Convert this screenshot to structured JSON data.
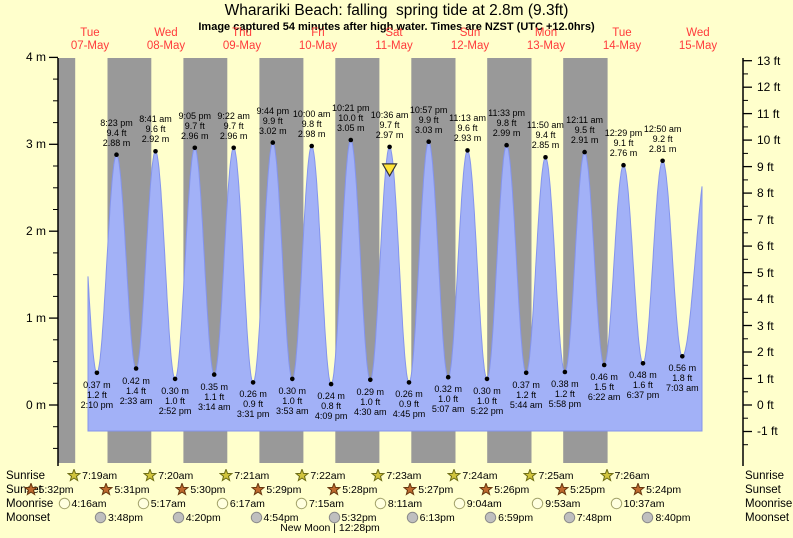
{
  "title": "Wharariki Beach: falling  spring tide at 2.8m (9.3ft)",
  "subtitle": "Image captured 54 minutes after high water. Times are NZST (UTC +12.0hrs)",
  "days": [
    {
      "name": "Tue",
      "date": "07-May"
    },
    {
      "name": "Wed",
      "date": "08-May"
    },
    {
      "name": "Thu",
      "date": "09-May"
    },
    {
      "name": "Fri",
      "date": "10-May"
    },
    {
      "name": "Sat",
      "date": "11-May"
    },
    {
      "name": "Sun",
      "date": "12-May"
    },
    {
      "name": "Mon",
      "date": "13-May"
    },
    {
      "name": "Tue",
      "date": "14-May"
    },
    {
      "name": "Wed",
      "date": "15-May"
    }
  ],
  "axes": {
    "left_labels": [
      "4 m",
      "3 m",
      "2 m",
      "1 m",
      "0 m"
    ],
    "right_labels": [
      "13 ft",
      "12 ft",
      "11 ft",
      "10 ft",
      "9 ft",
      "8 ft",
      "7 ft",
      "6 ft",
      "5 ft",
      "4 ft",
      "3 ft",
      "2 ft",
      "1 ft",
      "0 ft",
      "-1 ft"
    ]
  },
  "chart_data": {
    "type": "area",
    "title": "Wharariki Beach: falling  spring tide at 2.8m (9.3ft)",
    "ylabel_left": "m",
    "ylabel_right": "ft",
    "ylim_m": [
      -0.67,
      4.0
    ],
    "x_categories": [
      "07-May",
      "08-May",
      "09-May",
      "10-May",
      "11-May",
      "12-May",
      "13-May",
      "14-May",
      "15-May"
    ],
    "tide_events": [
      {
        "day": 0,
        "time": "2:10 pm",
        "m": "0.37",
        "ft": "1.2",
        "type": "low"
      },
      {
        "day": 0,
        "time": "8:23 pm",
        "m": "2.88",
        "ft": "9.4",
        "type": "high"
      },
      {
        "day": 1,
        "time": "2:33 am",
        "m": "0.42",
        "ft": "1.4",
        "type": "low"
      },
      {
        "day": 1,
        "time": "8:41 am",
        "m": "2.92",
        "ft": "9.6",
        "type": "high"
      },
      {
        "day": 1,
        "time": "2:52 pm",
        "m": "0.30",
        "ft": "1.0",
        "type": "low"
      },
      {
        "day": 1,
        "time": "9:05 pm",
        "m": "2.96",
        "ft": "9.7",
        "type": "high"
      },
      {
        "day": 2,
        "time": "3:14 am",
        "m": "0.35",
        "ft": "1.1",
        "type": "low"
      },
      {
        "day": 2,
        "time": "9:22 am",
        "m": "2.96",
        "ft": "9.7",
        "type": "high"
      },
      {
        "day": 2,
        "time": "3:31 pm",
        "m": "0.26",
        "ft": "0.9",
        "type": "low"
      },
      {
        "day": 2,
        "time": "9:44 pm",
        "m": "3.02",
        "ft": "9.9",
        "type": "high"
      },
      {
        "day": 3,
        "time": "3:53 am",
        "m": "0.30",
        "ft": "1.0",
        "type": "low"
      },
      {
        "day": 3,
        "time": "10:00 am",
        "m": "2.98",
        "ft": "9.8",
        "type": "high"
      },
      {
        "day": 3,
        "time": "4:09 pm",
        "m": "0.24",
        "ft": "0.8",
        "type": "low"
      },
      {
        "day": 3,
        "time": "10:21 pm",
        "m": "3.05",
        "ft": "10.0",
        "type": "high"
      },
      {
        "day": 4,
        "time": "4:30 am",
        "m": "0.29",
        "ft": "1.0",
        "type": "low"
      },
      {
        "day": 4,
        "time": "10:36 am",
        "m": "2.97",
        "ft": "9.7",
        "type": "high",
        "current": true
      },
      {
        "day": 4,
        "time": "4:45 pm",
        "m": "0.26",
        "ft": "0.9",
        "type": "low"
      },
      {
        "day": 4,
        "time": "10:57 pm",
        "m": "3.03",
        "ft": "9.9",
        "type": "high"
      },
      {
        "day": 5,
        "time": "5:07 am",
        "m": "0.32",
        "ft": "1.0",
        "type": "low"
      },
      {
        "day": 5,
        "time": "11:13 am",
        "m": "2.93",
        "ft": "9.6",
        "type": "high"
      },
      {
        "day": 5,
        "time": "5:22 pm",
        "m": "0.30",
        "ft": "1.0",
        "type": "low"
      },
      {
        "day": 5,
        "time": "11:33 pm",
        "m": "2.99",
        "ft": "9.8",
        "type": "high"
      },
      {
        "day": 6,
        "time": "5:44 am",
        "m": "0.37",
        "ft": "1.2",
        "type": "low"
      },
      {
        "day": 6,
        "time": "11:50 am",
        "m": "2.85",
        "ft": "9.4",
        "type": "high"
      },
      {
        "day": 6,
        "time": "5:58 pm",
        "m": "0.38",
        "ft": "1.2",
        "type": "low"
      },
      {
        "day": 7,
        "time": "12:11 am",
        "m": "2.91",
        "ft": "9.5",
        "type": "high"
      },
      {
        "day": 7,
        "time": "6:22 am",
        "m": "0.46",
        "ft": "1.5",
        "type": "low"
      },
      {
        "day": 7,
        "time": "12:29 pm",
        "m": "2.76",
        "ft": "9.1",
        "type": "high"
      },
      {
        "day": 7,
        "time": "6:37 pm",
        "m": "0.48",
        "ft": "1.6",
        "type": "low"
      },
      {
        "day": 8,
        "time": "12:50 am",
        "m": "2.81",
        "ft": "9.2",
        "type": "high"
      },
      {
        "day": 8,
        "time": "7:03 am",
        "m": "0.56",
        "ft": "1.8",
        "type": "low"
      }
    ]
  },
  "almanac": {
    "rows": [
      {
        "id": "sunrise",
        "label": "Sunrise",
        "marker": "star",
        "entries": [
          {
            "day": 0,
            "time": "7:19am"
          },
          {
            "day": 1,
            "time": "7:20am"
          },
          {
            "day": 2,
            "time": "7:21am"
          },
          {
            "day": 3,
            "time": "7:22am"
          },
          {
            "day": 4,
            "time": "7:23am"
          },
          {
            "day": 5,
            "time": "7:24am"
          },
          {
            "day": 6,
            "time": "7:25am"
          },
          {
            "day": 7,
            "time": "7:26am"
          }
        ]
      },
      {
        "id": "sunset",
        "label": "Sunset",
        "marker": "star",
        "entries": [
          {
            "day": -1,
            "time": "5:32pm"
          },
          {
            "day": 0,
            "time": "5:31pm"
          },
          {
            "day": 1,
            "time": "5:30pm"
          },
          {
            "day": 2,
            "time": "5:29pm"
          },
          {
            "day": 3,
            "time": "5:28pm"
          },
          {
            "day": 4,
            "time": "5:27pm"
          },
          {
            "day": 5,
            "time": "5:26pm"
          },
          {
            "day": 6,
            "time": "5:25pm"
          },
          {
            "day": 7,
            "time": "5:24pm"
          }
        ]
      },
      {
        "id": "moonrise",
        "label": "Moonrise",
        "marker": "circle",
        "entries": [
          {
            "day": 0,
            "time": "4:16am"
          },
          {
            "day": 1,
            "time": "5:17am"
          },
          {
            "day": 2,
            "time": "6:17am"
          },
          {
            "day": 3,
            "time": "7:15am"
          },
          {
            "day": 4,
            "time": "8:11am"
          },
          {
            "day": 5,
            "time": "9:04am"
          },
          {
            "day": 6,
            "time": "9:53am"
          },
          {
            "day": 7,
            "time": "10:37am"
          }
        ]
      },
      {
        "id": "moonset",
        "label": "Moonset",
        "marker": "circle",
        "entries": [
          {
            "day": 0,
            "time": "3:48pm"
          },
          {
            "day": 1,
            "time": "4:20pm"
          },
          {
            "day": 2,
            "time": "4:54pm"
          },
          {
            "day": 3,
            "time": "5:32pm"
          },
          {
            "day": 4,
            "time": "6:13pm"
          },
          {
            "day": 5,
            "time": "6:59pm"
          },
          {
            "day": 6,
            "time": "7:48pm"
          },
          {
            "day": 7,
            "time": "8:40pm"
          }
        ]
      }
    ],
    "new_moon": "New Moon | 12:28pm"
  },
  "colors": {
    "background": "#FFFFCC",
    "night_band": "#999999",
    "tide_fill": "#A2B1F7",
    "tide_stroke": "#8494EC",
    "day_label_red": "#FF3B3B",
    "current_marker_yellow": "#FFE437",
    "sunrise_star": "#D2C53C",
    "sunrise_star_stroke": "#6B6B14",
    "sunset_star": "#BF6A2E",
    "sunset_star_stroke": "#66360E",
    "moonrise_circle": "#FFFFDF",
    "moonrise_circle_stroke": "#A3A36B",
    "moonset_circle": "#BFBFBF",
    "moonset_circle_stroke": "#8A8A8A",
    "dot": "#000000"
  }
}
